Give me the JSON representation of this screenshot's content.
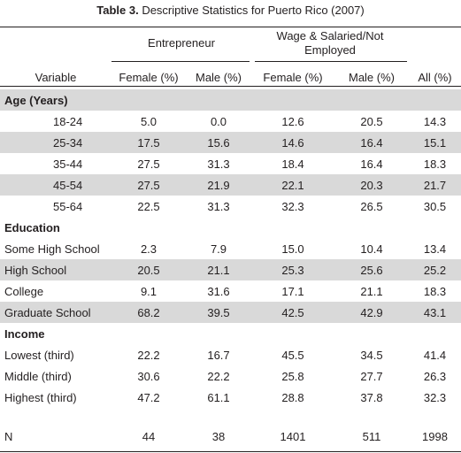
{
  "title_bold": "Table 3.",
  "title_rest": " Descriptive Statistics for Puerto Rico (2007)",
  "groups": {
    "entrepreneur": "Entrepreneur",
    "wage_line1": "Wage & Salaried/Not",
    "wage_line2": "Employed"
  },
  "columns": [
    "Variable",
    "Female (%)",
    "Male (%)",
    "Female (%)",
    "Male (%)",
    "All (%)"
  ],
  "sections": [
    {
      "name": "Age (Years)",
      "rows": [
        {
          "label": "18-24",
          "values": [
            "5.0",
            "0.0",
            "12.6",
            "20.5",
            "14.3"
          ]
        },
        {
          "label": "25-34",
          "values": [
            "17.5",
            "15.6",
            "14.6",
            "16.4",
            "15.1"
          ]
        },
        {
          "label": "35-44",
          "values": [
            "27.5",
            "31.3",
            "18.4",
            "16.4",
            "18.3"
          ]
        },
        {
          "label": "45-54",
          "values": [
            "27.5",
            "21.9",
            "22.1",
            "20.3",
            "21.7"
          ]
        },
        {
          "label": "55-64",
          "values": [
            "22.5",
            "31.3",
            "32.3",
            "26.5",
            "30.5"
          ]
        }
      ]
    },
    {
      "name": "Education",
      "rows": [
        {
          "label": "Some High School",
          "values": [
            "2.3",
            "7.9",
            "15.0",
            "10.4",
            "13.4"
          ]
        },
        {
          "label": "High School",
          "values": [
            "20.5",
            "21.1",
            "25.3",
            "25.6",
            "25.2"
          ]
        },
        {
          "label": "College",
          "values": [
            "9.1",
            "31.6",
            "17.1",
            "21.1",
            "18.3"
          ]
        },
        {
          "label": "Graduate School",
          "values": [
            "68.2",
            "39.5",
            "42.5",
            "42.9",
            "43.1"
          ]
        }
      ]
    },
    {
      "name": "Income",
      "rows": [
        {
          "label": "Lowest (third)",
          "values": [
            "22.2",
            "16.7",
            "45.5",
            "34.5",
            "41.4"
          ]
        },
        {
          "label": "Middle (third)",
          "values": [
            "30.6",
            "22.2",
            "25.8",
            "27.7",
            "26.3"
          ]
        },
        {
          "label": "Highest (third)",
          "values": [
            "47.2",
            "61.1",
            "28.8",
            "37.8",
            "32.3"
          ]
        }
      ]
    }
  ],
  "n_row": {
    "label": "N",
    "values": [
      "44",
      "38",
      "1401",
      "511",
      "1998"
    ]
  }
}
